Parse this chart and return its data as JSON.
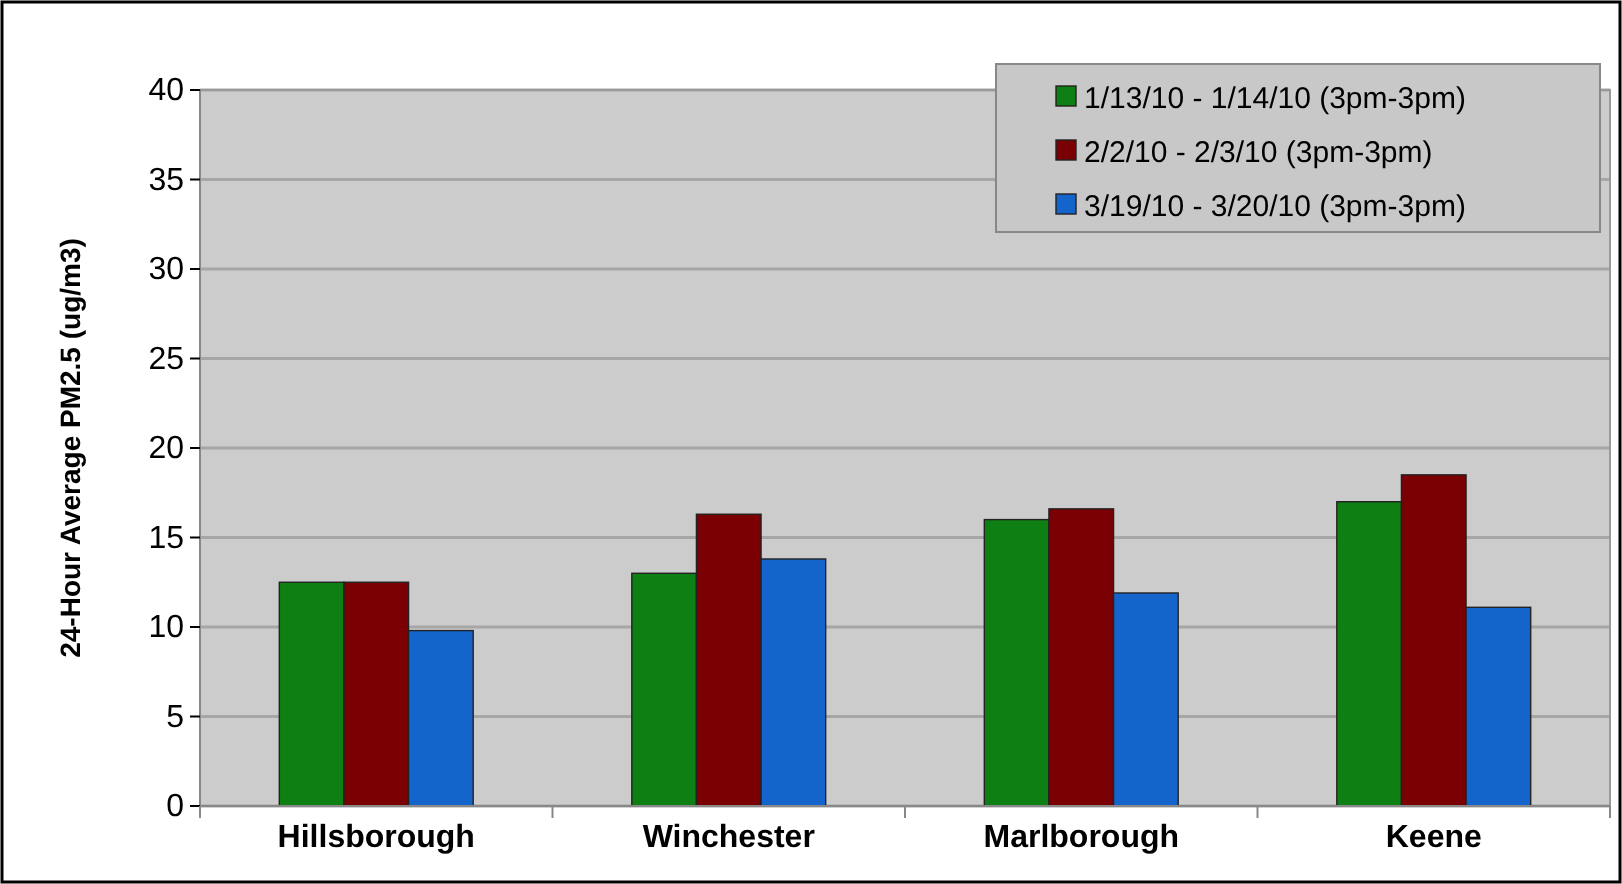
{
  "chart_data": {
    "type": "bar",
    "ylabel": "24-Hour Average PM2.5 (ug/m3)",
    "categories": [
      "Hillsborough",
      "Winchester",
      "Marlborough",
      "Keene"
    ],
    "series": [
      {
        "name": "1/13/10 - 1/14/10 (3pm-3pm)",
        "color": "#0e7f12",
        "values": [
          12.5,
          13.0,
          16.0,
          17.0
        ]
      },
      {
        "name": "2/2/10 - 2/3/10 (3pm-3pm)",
        "color": "#7a0004",
        "values": [
          12.5,
          16.3,
          16.6,
          18.5
        ]
      },
      {
        "name": "3/19/10 - 3/20/10 (3pm-3pm)",
        "color": "#1365cc",
        "values": [
          9.8,
          13.8,
          11.9,
          11.1
        ]
      }
    ],
    "ylim": [
      0,
      40
    ],
    "yticks": [
      0,
      5,
      10,
      15,
      20,
      25,
      30,
      35,
      40
    ],
    "grid": "y",
    "legend": "top right"
  }
}
